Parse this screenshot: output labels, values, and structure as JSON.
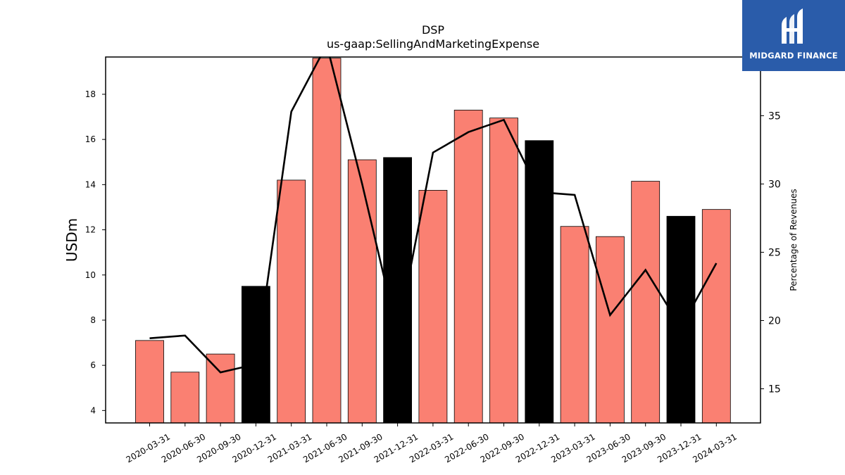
{
  "chart_data": {
    "type": "bar",
    "title": "DSP",
    "subtitle": "us-gaap:SellingAndMarketingExpense",
    "ylabel": "USDm",
    "ylabel_right": "Percentage of Revenues",
    "ylim": [
      3.45,
      19.65
    ],
    "ylim_right": [
      12.5,
      39.3
    ],
    "yticks": [
      4,
      6,
      8,
      10,
      12,
      14,
      16,
      18
    ],
    "yticks_right": [
      15,
      20,
      25,
      30,
      35
    ],
    "grid": false,
    "categories": [
      "2020-03-31",
      "2020-06-30",
      "2020-09-30",
      "2020-12-31",
      "2021-03-31",
      "2021-06-30",
      "2021-09-30",
      "2021-12-31",
      "2022-03-31",
      "2022-06-30",
      "2022-09-30",
      "2022-12-31",
      "2023-03-31",
      "2023-06-30",
      "2023-09-30",
      "2023-12-31",
      "2024-03-31"
    ],
    "series": [
      {
        "type": "bar",
        "axis": "left",
        "values": [
          7.1,
          5.7,
          6.5,
          9.5,
          14.2,
          19.6,
          15.1,
          15.2,
          13.75,
          17.3,
          16.95,
          15.95,
          12.15,
          11.7,
          14.15,
          12.6,
          12.9
        ],
        "colors": [
          "#fa8072",
          "#fa8072",
          "#fa8072",
          "#000000",
          "#fa8072",
          "#fa8072",
          "#fa8072",
          "#000000",
          "#fa8072",
          "#fa8072",
          "#fa8072",
          "#000000",
          "#fa8072",
          "#fa8072",
          "#fa8072",
          "#000000",
          "#fa8072"
        ]
      },
      {
        "type": "line",
        "axis": "right",
        "color": "#000000",
        "values": [
          18.7,
          18.9,
          16.2,
          16.8,
          35.3,
          40.2,
          30.0,
          19.0,
          32.3,
          33.8,
          34.7,
          29.4,
          29.2,
          20.4,
          23.7,
          19.5,
          24.2
        ]
      }
    ]
  },
  "logo": {
    "text": "MIDGARD FINANCE"
  }
}
